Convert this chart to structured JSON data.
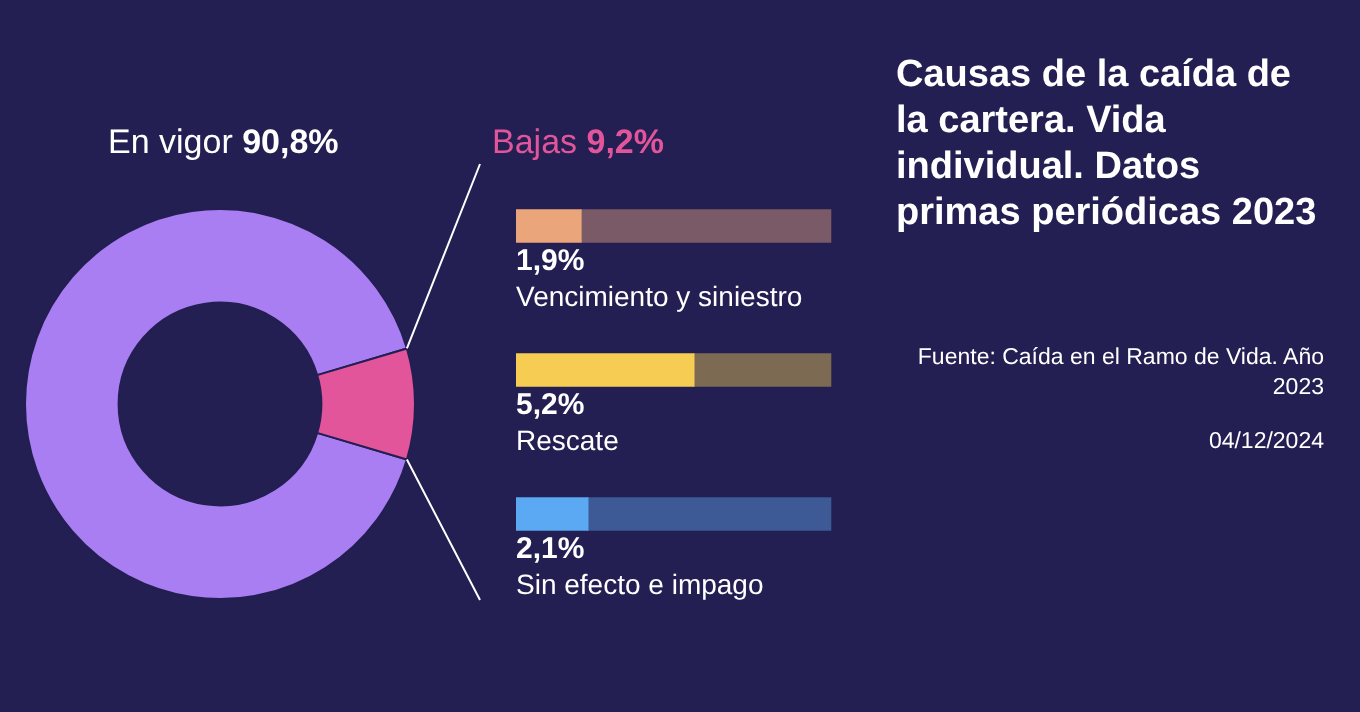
{
  "chart_data": [
    {
      "type": "donut",
      "title": "Causas de la caída de la cartera. Vida individual. Datos primas periódicas 2023",
      "categories": [
        "En vigor",
        "Bajas"
      ],
      "values": [
        90.8,
        9.2
      ],
      "value_labels": [
        "90,8%",
        "9,2%"
      ],
      "colors": [
        "#a97ef2",
        "#e2559a"
      ],
      "annotations": [
        "Fuente: Caída en el Ramo de Vida. Año 2023",
        "04/12/2024"
      ]
    },
    {
      "type": "bar",
      "orientation": "horizontal",
      "categories": [
        "Vencimiento y siniestro",
        "Rescate",
        "Sin efecto e impago"
      ],
      "stacked": true,
      "series": [
        {
          "colors": [
            "#eba57a",
            "#f6cd52",
            "#5aa9f2"
          ],
          "values": [
            1.9,
            5.2,
            2.1
          ],
          "value_labels": [
            "1,9%",
            "5,2%",
            "2,1%"
          ]
        },
        {
          "colors": [
            "#7a5a66",
            "#7c6a52",
            "#3d5a96"
          ],
          "values": [
            7.3,
            4.0,
            7.1
          ]
        }
      ]
    }
  ]
}
